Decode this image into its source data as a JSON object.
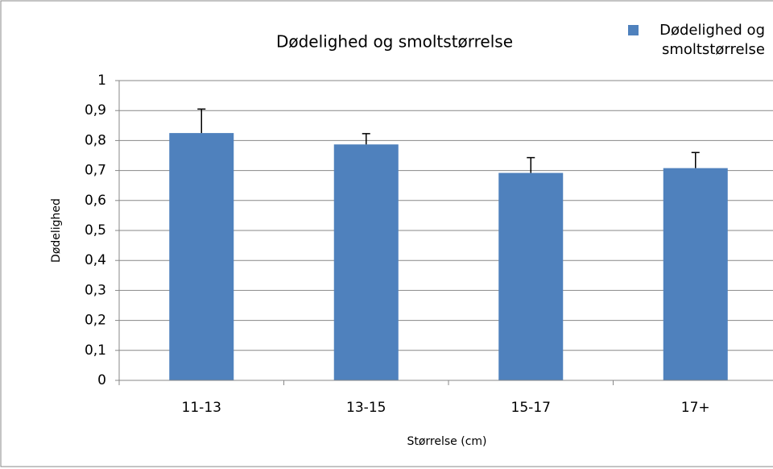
{
  "chart_data": {
    "type": "bar",
    "title": "Dødelighed og smoltstørrelse",
    "x_label": "Størrelse (cm)",
    "y_label": "Dødelighed",
    "categories": [
      "11-13",
      "13-15",
      "15-17",
      "17+"
    ],
    "series": [
      {
        "name": "Dødelighed og smoltstørrelse",
        "color": "#4f81bd",
        "values": [
          0.825,
          0.787,
          0.692,
          0.708
        ],
        "errors": [
          0.08,
          0.036,
          0.051,
          0.052
        ]
      }
    ],
    "ylim": [
      0,
      1
    ],
    "yticks": [
      0,
      {
        "value": 0.1,
        "label": "0,1"
      },
      {
        "value": 0.2,
        "label": "0,2"
      },
      {
        "value": 0.3,
        "label": "0,3"
      },
      {
        "value": 0.4,
        "label": "0,4"
      },
      {
        "value": 0.5,
        "label": "0,5"
      },
      {
        "value": 0.6,
        "label": "0,6"
      },
      {
        "value": 0.7,
        "label": "0,7"
      },
      {
        "value": 0.8,
        "label": "0,8"
      },
      {
        "value": 0.9,
        "label": "0,9"
      },
      1
    ],
    "grid": true,
    "legend": "top-right"
  }
}
